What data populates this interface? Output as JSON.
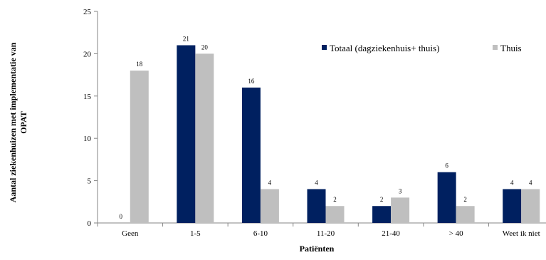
{
  "chart_data": {
    "type": "bar",
    "ylabel_lines": [
      "Aantal ziekenhuizen met implementatie van",
      "OPAT"
    ],
    "xlabel": "Patiënten",
    "categories": [
      "Geen",
      "1-5",
      "6-10",
      "11-20",
      "21-40",
      "> 40",
      "Weet ik niet"
    ],
    "ylim": [
      0,
      25
    ],
    "yticks": [
      0,
      5,
      10,
      15,
      20,
      25
    ],
    "grid": false,
    "legend_position": "top-right",
    "series": [
      {
        "name": "Totaal (dagziekenhuis+ thuis)",
        "color": "#002060",
        "values": [
          0,
          21,
          16,
          4,
          2,
          6,
          4
        ]
      },
      {
        "name": "Thuis",
        "color": "#bfbfbf",
        "values": [
          18,
          20,
          4,
          2,
          3,
          2,
          4
        ]
      }
    ]
  }
}
